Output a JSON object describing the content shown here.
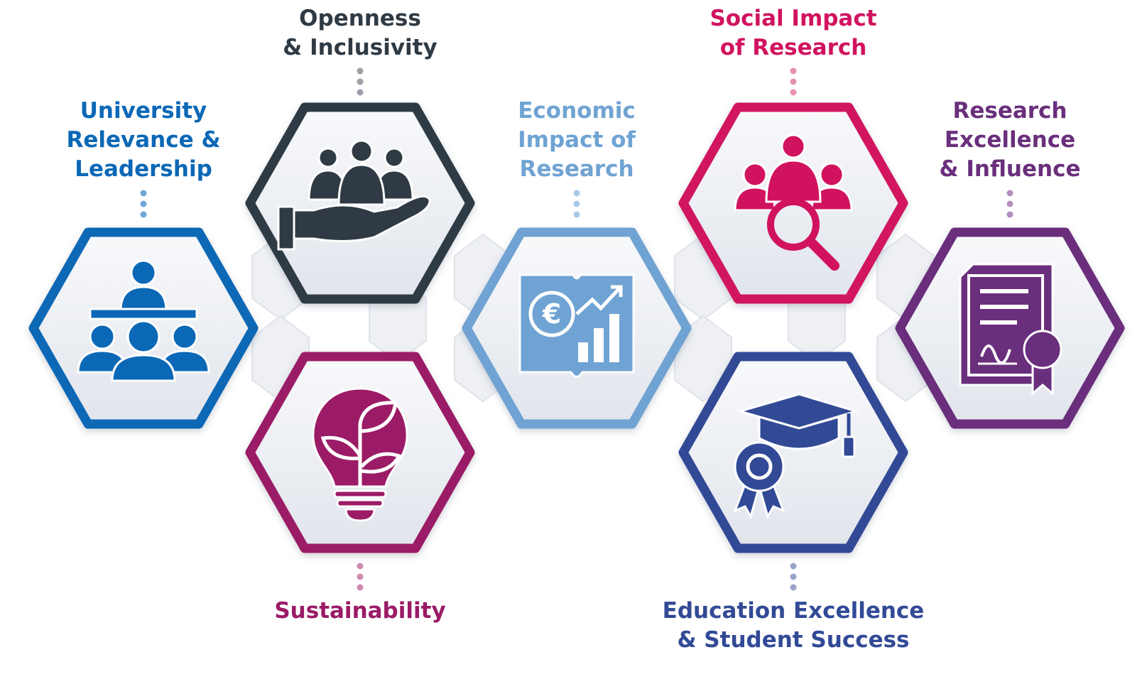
{
  "nodes": [
    {
      "id": "university-relevance",
      "color": "#0b68b6",
      "icon": "meeting-group-icon",
      "label_lines": [
        "University",
        "Relevance &",
        "Leadership"
      ]
    },
    {
      "id": "openness-inclusivity",
      "color": "#2f3a44",
      "icon": "hand-holding-people-icon",
      "label_lines": [
        "Openness",
        "& Inclusivity"
      ]
    },
    {
      "id": "sustainability",
      "color": "#9b1b66",
      "icon": "lightbulb-leaf-icon",
      "label_lines": [
        "Sustainability"
      ]
    },
    {
      "id": "economic-impact",
      "color": "#6fa3d3",
      "icon": "euro-growth-report-icon",
      "label_lines": [
        "Economic",
        "Impact of",
        "Research"
      ]
    },
    {
      "id": "social-impact",
      "color": "#d1135f",
      "icon": "people-magnifier-icon",
      "label_lines": [
        "Social Impact",
        "of Research"
      ]
    },
    {
      "id": "education-excellence",
      "color": "#324a96",
      "icon": "graduation-cap-award-icon",
      "label_lines": [
        "Education Excellence",
        "& Student Success"
      ]
    },
    {
      "id": "research-excellence",
      "color": "#6a2f7c",
      "icon": "certificate-seal-icon",
      "label_lines": [
        "Research",
        "Excellence",
        "& Influence"
      ]
    }
  ]
}
